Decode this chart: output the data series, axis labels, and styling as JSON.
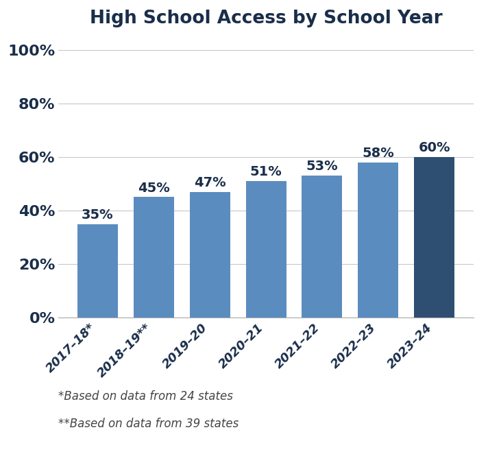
{
  "title": "High School Access by School Year",
  "categories": [
    "2017–18*",
    "2018–19**",
    "2019–20",
    "2020–21",
    "2021–22",
    "2022–23",
    "2023–24"
  ],
  "values": [
    35,
    45,
    47,
    51,
    53,
    58,
    60
  ],
  "bar_colors": [
    "#5b8cbf",
    "#5b8cbf",
    "#5b8cbf",
    "#5b8cbf",
    "#5b8cbf",
    "#5b8cbf",
    "#2e4f72"
  ],
  "label_color": "#1a2e4a",
  "ylim": [
    0,
    105
  ],
  "yticks": [
    0,
    20,
    40,
    60,
    80,
    100
  ],
  "ytick_labels": [
    "0%",
    "20%",
    "40%",
    "60%",
    "80%",
    "100%"
  ],
  "title_color": "#1a2e4a",
  "title_fontsize": 19,
  "label_fontsize": 14,
  "tick_fontsize": 16,
  "xtick_fontsize": 13,
  "footnote1": "*Based on data from 24 states",
  "footnote2": "**Based on data from 39 states",
  "footnote_fontsize": 12,
  "footnote_color": "#444444",
  "background_color": "#ffffff",
  "grid_color": "#c8c8c8",
  "bar_width": 0.72
}
